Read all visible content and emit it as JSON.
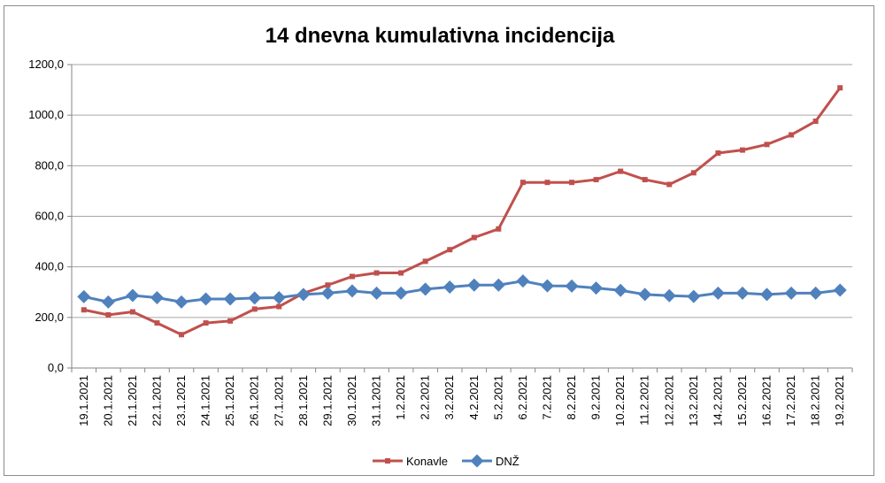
{
  "chart_data": {
    "type": "line",
    "title": "14 dnevna kumulativna incidencija",
    "xlabel": "",
    "ylabel": "",
    "ylim": [
      0,
      1200
    ],
    "y_ticks": [
      "0,0",
      "200,0",
      "400,0",
      "600,0",
      "800,0",
      "1000,0",
      "1200,0"
    ],
    "grid": true,
    "legend_position": "bottom",
    "x": [
      "19.1.2021",
      "20.1.2021",
      "21.1.2021",
      "22.1.2021",
      "23.1.2021",
      "24.1.2021",
      "25.1.2021",
      "26.1.2021",
      "27.1.2021",
      "28.1.2021",
      "29.1.2021",
      "30.1.2021",
      "31.1.2021",
      "1.2.2021",
      "2.2.2021",
      "3.2.2021",
      "4.2.2021",
      "5.2.2021",
      "6.2.2021",
      "7.2.2021",
      "8.2.2021",
      "9.2.2021",
      "10.2.2021",
      "11.2.2021",
      "12.2.2021",
      "13.2.2021",
      "14.2.2021",
      "15.2.2021",
      "16.2.2021",
      "17.2.2021",
      "18.2.2021",
      "19.2.2021"
    ],
    "series": [
      {
        "name": "Konavle",
        "color": "#c0504d",
        "marker": "square",
        "values": [
          230,
          210,
          222,
          178,
          132,
          178,
          186,
          233,
          243,
          296,
          328,
          362,
          376,
          376,
          422,
          468,
          516,
          550,
          734,
          734,
          734,
          745,
          778,
          745,
          726,
          772,
          850,
          862,
          884,
          922,
          976,
          1108
        ]
      },
      {
        "name": "DNŽ",
        "color": "#4f81bd",
        "marker": "diamond",
        "values": [
          282,
          261,
          287,
          278,
          261,
          273,
          273,
          277,
          278,
          291,
          296,
          305,
          296,
          296,
          312,
          320,
          328,
          328,
          344,
          325,
          324,
          316,
          307,
          291,
          286,
          283,
          296,
          296,
          291,
          296,
          296,
          308
        ]
      }
    ]
  }
}
